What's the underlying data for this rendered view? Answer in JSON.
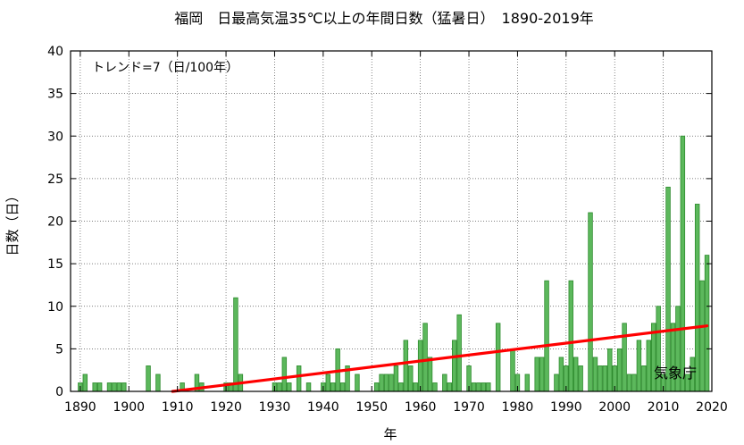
{
  "chart_data": {
    "type": "bar",
    "title": "福岡　日最高気温35℃以上の年間日数（猛暑日）　1890-2019年",
    "xlabel": "年",
    "ylabel": "日数（日）",
    "xlim": [
      1888,
      2020
    ],
    "ylim": [
      0,
      40
    ],
    "x_ticks": [
      1890,
      1900,
      1910,
      1920,
      1930,
      1940,
      1950,
      1960,
      1970,
      1980,
      1990,
      2000,
      2010,
      2020
    ],
    "y_ticks": [
      0,
      5,
      10,
      15,
      20,
      25,
      30,
      35,
      40
    ],
    "grid": true,
    "trend_label": "トレンド=7（日/100年）",
    "source_label": "気象庁",
    "bar_color": "#5cb85c",
    "bar_edge_color": "#2e8b2e",
    "trend_color": "#ff0000",
    "series": [
      {
        "x": [
          1890,
          1891,
          1892,
          1893,
          1894,
          1895,
          1896,
          1897,
          1898,
          1899,
          1900,
          1901,
          1902,
          1903,
          1904,
          1905,
          1906,
          1907,
          1908,
          1909,
          1910,
          1911,
          1912,
          1913,
          1914,
          1915,
          1916,
          1917,
          1918,
          1919,
          1920,
          1921,
          1922,
          1923,
          1924,
          1925,
          1926,
          1927,
          1928,
          1929,
          1930,
          1931,
          1932,
          1933,
          1934,
          1935,
          1936,
          1937,
          1938,
          1939,
          1940,
          1941,
          1942,
          1943,
          1944,
          1945,
          1946,
          1947,
          1948,
          1949,
          1950,
          1951,
          1952,
          1953,
          1954,
          1955,
          1956,
          1957,
          1958,
          1959,
          1960,
          1961,
          1962,
          1963,
          1964,
          1965,
          1966,
          1967,
          1968,
          1969,
          1970,
          1971,
          1972,
          1973,
          1974,
          1975,
          1976,
          1977,
          1978,
          1979,
          1980,
          1981,
          1982,
          1983,
          1984,
          1985,
          1986,
          1987,
          1988,
          1989,
          1990,
          1991,
          1992,
          1993,
          1994,
          1995,
          1996,
          1997,
          1998,
          1999,
          2000,
          2001,
          2002,
          2003,
          2004,
          2005,
          2006,
          2007,
          2008,
          2009,
          2010,
          2011,
          2012,
          2013,
          2014,
          2015,
          2016,
          2017,
          2018,
          2019
        ],
        "values": [
          1,
          2,
          0,
          1,
          1,
          0,
          1,
          1,
          1,
          1,
          0,
          0,
          0,
          0,
          3,
          0,
          2,
          0,
          0,
          0,
          0,
          1,
          0,
          0,
          2,
          1,
          0,
          0,
          0,
          0,
          1,
          1,
          11,
          2,
          0,
          0,
          0,
          0,
          0,
          0,
          1,
          1,
          4,
          1,
          0,
          3,
          0,
          1,
          0,
          0,
          1,
          2,
          1,
          5,
          1,
          3,
          0,
          2,
          0,
          0,
          0,
          1,
          2,
          2,
          2,
          3,
          1,
          6,
          3,
          1,
          6,
          8,
          4,
          1,
          0,
          2,
          1,
          6,
          9,
          0,
          3,
          1,
          1,
          1,
          1,
          0,
          8,
          0,
          0,
          5,
          2,
          0,
          2,
          0,
          4,
          4,
          13,
          0,
          2,
          4,
          3,
          13,
          4,
          3,
          0,
          21,
          4,
          3,
          3,
          5,
          3,
          5,
          8,
          2,
          2,
          6,
          3,
          6,
          8,
          10,
          2,
          24,
          8,
          10,
          30,
          2,
          4,
          22,
          13,
          16
        ]
      }
    ],
    "trend": {
      "x": [
        1909,
        2019
      ],
      "y": [
        0.0,
        7.7
      ]
    }
  }
}
